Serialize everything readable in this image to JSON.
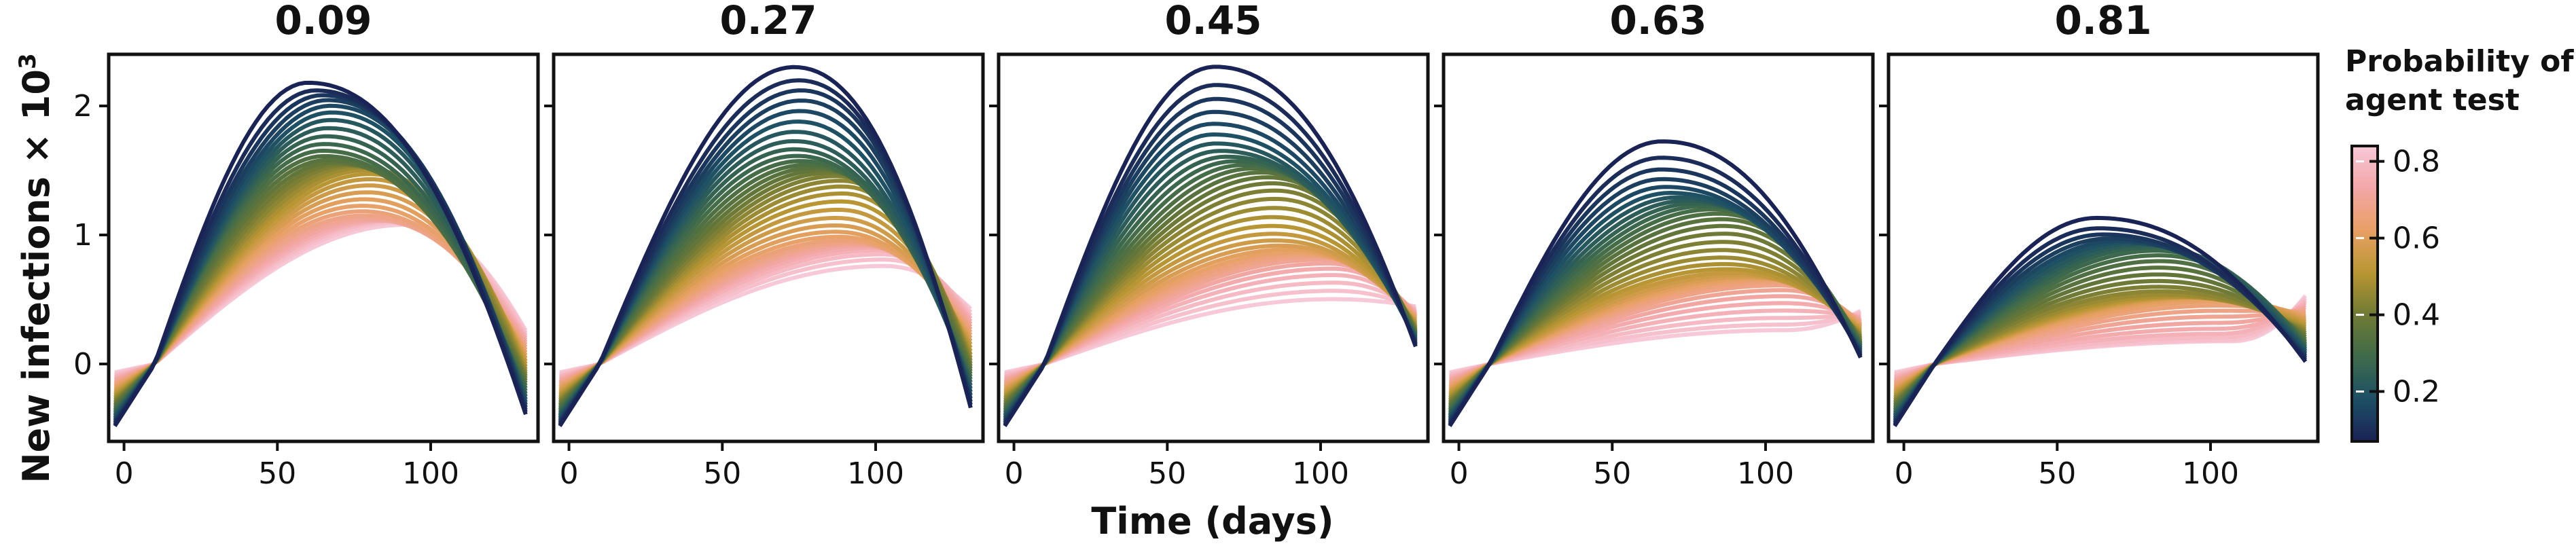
{
  "chart_data": {
    "type": "line",
    "ylabel": "New infections × 10",
    "ylabel_sup": "3",
    "xlabel": "Time (days)",
    "xlim": [
      -5,
      135
    ],
    "ylim": [
      -0.6,
      2.4
    ],
    "xticks": [
      0,
      50,
      100
    ],
    "yticks": [
      0,
      1,
      2
    ],
    "grid": false,
    "colorbar": {
      "title_lines": [
        "Probability of",
        "agent test"
      ],
      "range": [
        0.07,
        0.84
      ],
      "ticks": [
        0.2,
        0.4,
        0.6,
        0.8
      ],
      "colors": [
        "#1a2355",
        "#1d4f66",
        "#3f6b4a",
        "#6f7a35",
        "#b89632",
        "#e8a064",
        "#f3a6a6",
        "#f7c8d8"
      ]
    },
    "panels": [
      {
        "title": "0.09",
        "peak_first": 2.18,
        "peak_last": 1.02,
        "t_first": 60,
        "t_last": 88,
        "end_min": -0.32,
        "end_max": 0.3
      },
      {
        "title": "0.27",
        "peak_first": 2.25,
        "peak_last": 0.72,
        "t_first": 70,
        "t_last": 100,
        "end_min": -0.25,
        "end_max": 0.45
      },
      {
        "title": "0.45",
        "peak_first": 2.25,
        "peak_last": 0.52,
        "t_first": 62,
        "t_last": 105,
        "end_min": 0.2,
        "end_max": 0.45
      },
      {
        "title": "0.63",
        "peak_first": 1.72,
        "peak_last": 0.32,
        "t_first": 66,
        "t_last": 110,
        "end_min": 0.1,
        "end_max": 0.4
      },
      {
        "title": "0.81",
        "peak_first": 1.18,
        "peak_last": 0.22,
        "t_first": 66,
        "t_last": 110,
        "end_min": 0.05,
        "end_max": 0.5
      }
    ]
  }
}
